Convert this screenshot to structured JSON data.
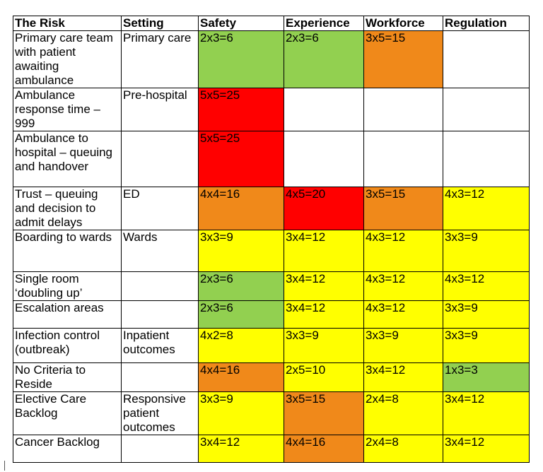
{
  "table": {
    "headers": [
      "The Risk",
      "Setting",
      "Safety",
      "Experience",
      "Workforce",
      "Regulation"
    ],
    "rows": [
      [
        "Primary care team with patient awaiting ambulance",
        "Primary care",
        "2x3=6",
        "2x3=6",
        "3x5=15",
        null
      ],
      [
        "Ambulance response time – 999",
        "Pre-hospital",
        "5x5=25",
        null,
        null,
        null
      ],
      [
        "Ambulance to hospital – queuing and handover",
        null,
        "5x5=25",
        null,
        null,
        null
      ],
      [
        "Trust – queuing and decision to admit delays",
        "ED",
        "4x4=16",
        "4x5=20",
        "3x5=15",
        "4x3=12"
      ],
      [
        "Boarding to wards",
        "Wards",
        "3x3=9",
        "3x4=12",
        "4x3=12",
        "3x3=9"
      ],
      [
        "Single room ‘doubling up’",
        null,
        "2x3=6",
        "3x4=12",
        "4x3=12",
        "4x3=12"
      ],
      [
        "Escalation areas",
        null,
        "2x3=6",
        "3x4=12",
        "4x3=12",
        "3x3=9"
      ],
      [
        "Infection control (outbreak)",
        "Inpatient outcomes",
        "4x2=8",
        "3x3=9",
        "3x3=9",
        "3x3=9"
      ],
      [
        "No Criteria to Reside",
        null,
        "4x4=16",
        "2x5=10",
        "3x4=12",
        "1x3=3"
      ],
      [
        "Elective Care Backlog",
        "Responsive patient outcomes",
        "3x3=9",
        "3x5=15",
        "2x4=8",
        "3x4=12"
      ],
      [
        "Cancer Backlog",
        null,
        "3x4=12",
        "4x4=16",
        "2x4=8",
        "3x4=12"
      ]
    ],
    "fills": [
      [
        null,
        null,
        "#92d050",
        "#92d050",
        "#f0891a",
        null
      ],
      [
        null,
        null,
        "#ff0000",
        null,
        null,
        null
      ],
      [
        null,
        null,
        "#ff0000",
        null,
        null,
        null
      ],
      [
        null,
        null,
        "#f0891a",
        "#ff0000",
        "#f0891a",
        "#ffff00"
      ],
      [
        null,
        null,
        "#ffff00",
        "#ffff00",
        "#ffff00",
        "#ffff00"
      ],
      [
        null,
        null,
        "#92d050",
        "#ffff00",
        "#ffff00",
        "#ffff00"
      ],
      [
        null,
        null,
        "#92d050",
        "#ffff00",
        "#ffff00",
        "#ffff00"
      ],
      [
        null,
        null,
        "#ffff00",
        "#ffff00",
        "#ffff00",
        "#ffff00"
      ],
      [
        null,
        null,
        "#f0891a",
        "#ffff00",
        "#ffff00",
        "#92d050"
      ],
      [
        null,
        null,
        "#ffff00",
        "#f0891a",
        "#ffff00",
        "#ffff00"
      ],
      [
        null,
        null,
        "#ffff00",
        "#f0891a",
        "#ffff00",
        "#ffff00"
      ]
    ]
  }
}
